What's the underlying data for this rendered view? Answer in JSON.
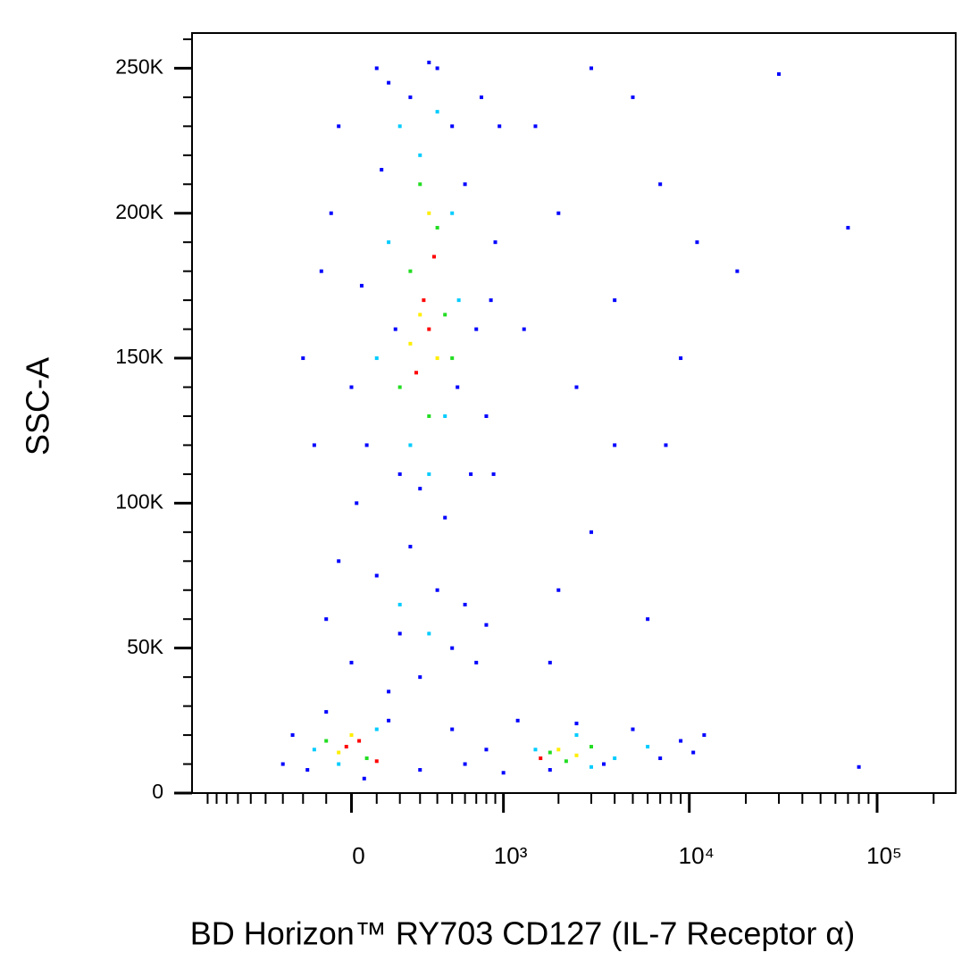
{
  "chart_data": {
    "type": "scatter",
    "x_label": "BD Horizon™ RY703 CD127 (IL-7 Receptor α)",
    "y_label": "SSC-A",
    "xscale": "biexponential",
    "xlim": [
      -1100,
      262144
    ],
    "ylim": [
      0,
      262144
    ],
    "xticks": [
      0,
      {
        "value": 1000,
        "label": "10³"
      },
      {
        "value": 10000,
        "label": "10⁴"
      },
      {
        "value": 100000,
        "label": "10⁵"
      }
    ],
    "xminorticks": [
      -900,
      -800,
      -700,
      -600,
      -500,
      -400,
      -300,
      -200,
      -100,
      100,
      200,
      300,
      400,
      500,
      600,
      700,
      800,
      900,
      2000,
      3000,
      4000,
      5000,
      6000,
      7000,
      8000,
      9000,
      20000,
      30000,
      40000,
      50000,
      60000,
      70000,
      80000,
      90000,
      200000
    ],
    "yticks": [
      0,
      {
        "value": 50000,
        "label": "50K"
      },
      {
        "value": 100000,
        "label": "100K"
      },
      {
        "value": 150000,
        "label": "150K"
      },
      {
        "value": 200000,
        "label": "200K"
      },
      {
        "value": 250000,
        "label": "250K"
      }
    ],
    "yminorticks": [
      10000,
      20000,
      30000,
      40000,
      60000,
      70000,
      80000,
      90000,
      110000,
      120000,
      130000,
      140000,
      160000,
      170000,
      180000,
      190000,
      210000,
      220000,
      230000,
      240000,
      260000
    ],
    "series": [
      {
        "color": "#0000ff",
        "x": [
          -120,
          -50,
          0,
          60,
          100,
          150,
          200,
          250,
          300,
          400,
          500,
          600,
          700,
          800,
          900,
          950,
          -200,
          -80,
          20,
          120,
          650,
          750,
          850,
          450,
          350,
          180,
          -150,
          540,
          880,
          40,
          -100,
          0,
          100,
          200,
          300,
          400,
          500,
          600,
          700,
          -50,
          150,
          250,
          800,
          -300,
          -250,
          -180,
          -100,
          50,
          150,
          300,
          500,
          800,
          1200,
          1800,
          2500,
          3500,
          5000,
          7000,
          9000,
          10500,
          12000,
          600,
          1000,
          1500,
          2000,
          3000,
          4000,
          5000,
          7000,
          9000,
          11000,
          18000,
          30000,
          70000,
          3000,
          2000,
          6000,
          4000,
          2500,
          80000,
          1300,
          1800,
          7500
        ],
        "values": [
          180000,
          230000,
          140000,
          120000,
          250000,
          245000,
          110000,
          240000,
          105000,
          250000,
          230000,
          210000,
          160000,
          130000,
          190000,
          230000,
          150000,
          200000,
          100000,
          215000,
          110000,
          240000,
          170000,
          95000,
          252000,
          160000,
          120000,
          140000,
          110000,
          175000,
          60000,
          45000,
          75000,
          55000,
          40000,
          70000,
          50000,
          65000,
          45000,
          80000,
          35000,
          85000,
          58000,
          10000,
          20000,
          8000,
          28000,
          5000,
          25000,
          8000,
          22000,
          15000,
          25000,
          8000,
          24000,
          10000,
          22000,
          12000,
          18000,
          14000,
          20000,
          10000,
          7000,
          230000,
          200000,
          250000,
          170000,
          240000,
          210000,
          150000,
          190000,
          180000,
          248000,
          195000,
          90000,
          70000,
          60000,
          120000,
          140000,
          9000,
          160000,
          45000,
          120000
        ]
      },
      {
        "color": "#00ccff",
        "x": [
          200,
          300,
          400,
          150,
          500,
          250,
          450,
          100,
          550,
          350,
          200,
          350,
          -50,
          100,
          1500,
          2500,
          4000,
          6000,
          -150,
          3000
        ],
        "values": [
          230000,
          220000,
          235000,
          190000,
          200000,
          120000,
          130000,
          150000,
          170000,
          110000,
          65000,
          55000,
          10000,
          22000,
          15000,
          20000,
          12000,
          16000,
          15000,
          9000
        ]
      },
      {
        "color": "#22dd22",
        "x": [
          300,
          400,
          250,
          450,
          200,
          350,
          500,
          1800,
          3000,
          2200,
          -100,
          60
        ],
        "values": [
          210000,
          195000,
          180000,
          165000,
          140000,
          130000,
          150000,
          14000,
          16000,
          11000,
          18000,
          12000
        ]
      },
      {
        "color": "#ffee00",
        "x": [
          350,
          300,
          400,
          250,
          2500,
          2000,
          0,
          -50
        ],
        "values": [
          200000,
          165000,
          150000,
          155000,
          13000,
          15000,
          20000,
          14000
        ]
      },
      {
        "color": "#ff0000",
        "x": [
          380,
          320,
          280,
          350,
          30,
          -20,
          100,
          1600
        ],
        "values": [
          185000,
          170000,
          145000,
          160000,
          18000,
          16000,
          11000,
          12000
        ]
      }
    ]
  }
}
